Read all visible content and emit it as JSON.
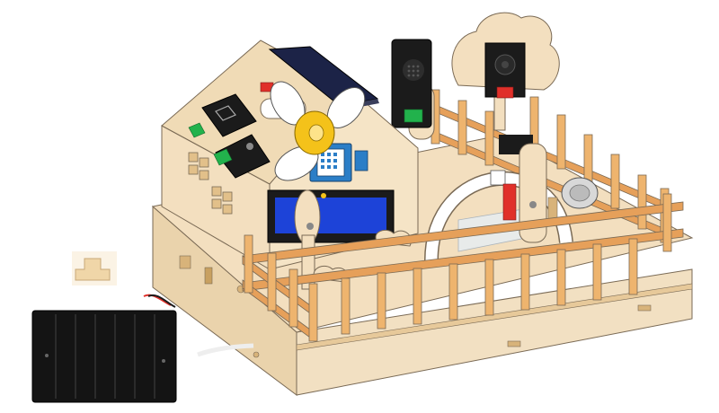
{
  "scene": {
    "subject": "smart-home-wooden-kit",
    "lcd": {
      "visible_text": ""
    }
  },
  "colors": {
    "background": "#ffffff",
    "wood_light": "#f3dfbf",
    "wood_mid": "#e7c99a",
    "wood_dark": "#d8b37a",
    "fence_orange": "#e6a05a",
    "outline": "#7a6a55",
    "module_black": "#1b1b1b",
    "fan_yellow": "#f4c21a",
    "lcd_blue": "#1d43d8",
    "sensor_blue": "#2b7ec7",
    "button_green": "#22b24c",
    "button_red": "#e0302a",
    "solar_navy": "#1c2347"
  },
  "icons": [
    "fan-icon",
    "lcd-screen-icon",
    "temperature-humidity-sensor-icon",
    "solar-panel-icon",
    "speaker-module-icon",
    "servo-motor-icon",
    "buzzer-icon",
    "battery-box-icon",
    "fence-icon",
    "tree-panel-icon",
    "switch-module-icon"
  ]
}
